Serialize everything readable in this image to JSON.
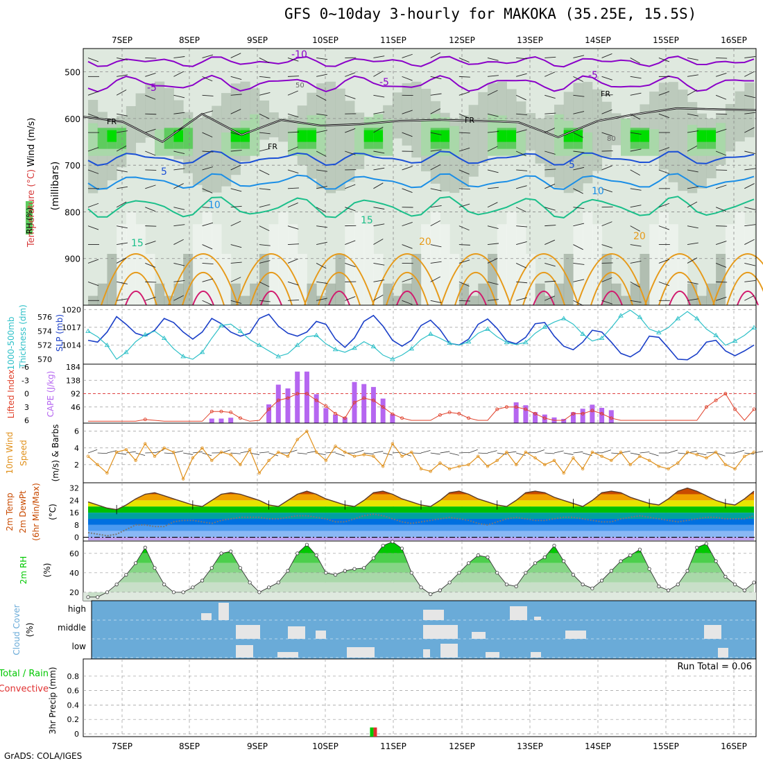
{
  "title": "GFS 0~10day 3-hourly for MAKOKA (35.25E, 15.5S)",
  "credit": "GrADS: COLA/IGES",
  "colors": {
    "rh_dark": "#00dd00",
    "rh_mid": "#5ecb5e",
    "rh_light": "#a9d8a9",
    "grey1": "#8a9a8a",
    "grey2": "#b3c2b3",
    "grey3": "#dfe9df",
    "iso_neg10": "#8a00c8",
    "iso_5": "#1a4fd6",
    "iso_10": "#1a8ee6",
    "iso_15": "#1bbf8a",
    "iso_20": "#e69a1a",
    "iso_25": "#d11a6e",
    "slp": "#1a3fc8",
    "thickness": "#2ec0c8",
    "cape": "#b566f0",
    "lifted": "#e0402a",
    "wind": "#e0901a",
    "cloud": "#6aabd8",
    "cloud_gap": "#e6e6e6",
    "rh2m": "#00c800"
  },
  "chart_data": [
    {
      "panel": "upper-air",
      "type": "heatmap",
      "x_dates": [
        "7SEP",
        "8SEP",
        "9SEP",
        "10SEP",
        "11SEP",
        "12SEP",
        "13SEP",
        "14SEP",
        "15SEP",
        "16SEP"
      ],
      "ylabel": "(millibars)",
      "y_ticks": [
        500,
        600,
        700,
        800,
        900
      ],
      "ylim": [
        1000,
        450
      ],
      "side_labels": [
        "Wind (m/s)",
        "Temperature (°C)",
        "RH (%)"
      ],
      "contour_labels": {
        "minus10": "-10",
        "minus5": "-5",
        "five": "5",
        "ten": "10",
        "fifteen": "15",
        "twenty": "20",
        "fr": "FR",
        "rh50": "50",
        "rh80": "80"
      },
      "freezing_level_mb": [
        596,
        607,
        650,
        590,
        635,
        603,
        615,
        612,
        605,
        603,
        605,
        608,
        640,
        605,
        590,
        578,
        580,
        582
      ]
    },
    {
      "panel": "slp-thickness",
      "type": "line",
      "left_labels": [
        "1000-500mb",
        "Thickness (dm)"
      ],
      "right_label": "SLP (mb)",
      "left_ticks": [
        570,
        572,
        574,
        576
      ],
      "right_ticks": [
        1014,
        1017,
        1020
      ],
      "ylim_slp": [
        1011,
        1020.5
      ],
      "ylim_thickness": [
        569.5,
        577.5
      ],
      "series": [
        {
          "name": "SLP",
          "values": [
            1014.8,
            1014.5,
            1016.2,
            1018.8,
            1017.5,
            1016.0,
            1015.5,
            1016.5,
            1018.5,
            1017.8,
            1016.2,
            1015.0,
            1016.2,
            1018.5,
            1017.6,
            1016.2,
            1015.5,
            1016.0,
            1018.5,
            1019.2,
            1017.2,
            1016.0,
            1015.5,
            1016.2,
            1018.0,
            1017.5,
            1015.0,
            1013.6,
            1015.2,
            1018.0,
            1019.0,
            1017.2,
            1014.8,
            1013.8,
            1014.8,
            1017.3,
            1018.2,
            1016.6,
            1014.3,
            1014.0,
            1015.0,
            1017.5,
            1018.4,
            1016.8,
            1014.7,
            1014.2,
            1015.3,
            1017.6,
            1017.8,
            1015.5,
            1013.8,
            1013.2,
            1014.5,
            1016.5,
            1016.2,
            1014.5,
            1012.6,
            1012.0,
            1013.0,
            1015.5,
            1015.3,
            1013.5,
            1011.6,
            1011.5,
            1012.5,
            1014.5,
            1014.8,
            1013.0,
            1012.2,
            1013.0,
            1014.0
          ]
        },
        {
          "name": "Thickness",
          "values": [
            574,
            573.2,
            572.0,
            570.0,
            571.0,
            572.5,
            573.5,
            574.0,
            573.0,
            571.5,
            570.4,
            570.0,
            571.0,
            573.0,
            574.8,
            575.0,
            574.0,
            572.8,
            572.0,
            571.2,
            570.4,
            570.8,
            572.0,
            573.2,
            573.4,
            572.2,
            571.4,
            571.0,
            571.6,
            572.5,
            571.8,
            570.6,
            570.0,
            570.6,
            571.5,
            572.8,
            573.6,
            573.0,
            572.3,
            572.0,
            572.5,
            573.7,
            574.3,
            573.2,
            572.4,
            572.1,
            572.4,
            573.7,
            574.6,
            575.3,
            575.8,
            575.0,
            573.6,
            572.6,
            573.0,
            574.5,
            576.2,
            577.0,
            576.0,
            574.3,
            573.8,
            574.5,
            575.8,
            576.8,
            575.8,
            574.3,
            573.4,
            572.0,
            572.6,
            573.4,
            574.5
          ]
        }
      ]
    },
    {
      "panel": "cape-lifted",
      "type": "bar",
      "left_labels": [
        "Lifted Index",
        "CAPE (J/kg)"
      ],
      "lifted_ticks": [
        "6",
        "3",
        "0",
        "-3",
        "-6"
      ],
      "cape_ticks": [
        "46",
        "92",
        "138",
        "184"
      ],
      "ylim_cape": [
        0,
        184
      ],
      "ylim_lifted": [
        6,
        -6
      ],
      "series": [
        {
          "name": "CAPE",
          "values": [
            0,
            0,
            0,
            0,
            0,
            0,
            0,
            0,
            0,
            0,
            0,
            0,
            0,
            6,
            6,
            9,
            0,
            0,
            0,
            55,
            123,
            110,
            168,
            168,
            90,
            42,
            20,
            10,
            132,
            125,
            115,
            75,
            22,
            0,
            0,
            0,
            0,
            0,
            0,
            0,
            0,
            0,
            0,
            0,
            0,
            62,
            52,
            28,
            20,
            10,
            5,
            28,
            40,
            54,
            43,
            35,
            0,
            0,
            0,
            0,
            0,
            0,
            0,
            0,
            0,
            0,
            0,
            0,
            0,
            0,
            0
          ]
        },
        {
          "name": "Lifted Index",
          "values": [
            6.2,
            6.2,
            6.2,
            6.2,
            6.2,
            6.2,
            5.8,
            6.0,
            6.2,
            6.2,
            6.2,
            6.2,
            6.2,
            4.0,
            4.0,
            4.2,
            5.5,
            6.2,
            6.0,
            3.5,
            1.5,
            1.0,
            0.0,
            0.0,
            1.5,
            2.8,
            4.5,
            5.5,
            2.0,
            1.0,
            1.5,
            3.0,
            4.6,
            5.5,
            6.0,
            6.0,
            6.0,
            4.8,
            4.2,
            4.5,
            5.5,
            6.0,
            6.0,
            3.5,
            3.0,
            3.0,
            3.5,
            4.5,
            5.5,
            6.0,
            6.0,
            4.5,
            4.5,
            3.8,
            4.5,
            5.5,
            6.0,
            6.0,
            6.0,
            6.0,
            6.0,
            6.0,
            6.0,
            6.0,
            6.0,
            3.0,
            1.5,
            0.0,
            3.5,
            6.0,
            3.5
          ]
        }
      ]
    },
    {
      "panel": "wind10m",
      "type": "line",
      "left_labels": [
        "10m Wind",
        "Speed",
        "(m/s) & Barbs"
      ],
      "y_ticks": [
        2,
        4,
        6
      ],
      "ylim": [
        0,
        6.8
      ],
      "series": [
        {
          "name": "10m Wind Speed",
          "values": [
            3.0,
            2.0,
            1.0,
            3.5,
            3.8,
            2.5,
            4.5,
            3.0,
            4.0,
            3.5,
            0.3,
            2.8,
            4.0,
            2.5,
            3.5,
            3.2,
            2.0,
            3.8,
            1.0,
            2.5,
            3.5,
            3.0,
            5.0,
            6.0,
            3.5,
            2.5,
            4.2,
            3.5,
            3.0,
            3.2,
            3.0,
            1.8,
            4.5,
            3.0,
            3.5,
            1.5,
            1.2,
            2.2,
            1.5,
            1.8,
            2.0,
            3.0,
            1.8,
            2.5,
            3.5,
            2.0,
            3.5,
            2.8,
            2.0,
            2.5,
            1.0,
            2.8,
            1.5,
            3.5,
            3.0,
            2.5,
            3.5,
            2.0,
            3.0,
            2.5,
            1.8,
            1.5,
            2.2,
            3.5,
            3.2,
            2.8,
            3.5,
            2.0,
            1.5,
            3.0,
            3.5
          ]
        }
      ]
    },
    {
      "panel": "temp2m",
      "type": "area",
      "left_labels": [
        "2m Temp",
        "2m DewPt",
        "(6hr Min/Max)"
      ],
      "unit_label": "(°C)",
      "y_ticks": [
        0,
        8,
        16,
        24,
        32
      ],
      "ylim": [
        -2,
        35
      ],
      "series": [
        {
          "name": "2m Temp",
          "values": [
            23,
            21,
            19,
            18,
            21,
            25,
            28,
            29,
            27,
            25,
            23,
            21,
            20,
            24,
            28,
            29,
            28,
            26,
            24,
            21,
            20,
            24,
            28,
            30,
            28,
            25,
            23,
            21,
            20,
            24,
            29,
            30,
            28,
            25,
            23,
            21,
            20,
            24,
            29,
            30,
            28,
            25,
            23,
            21,
            20,
            24,
            29,
            30,
            29,
            26,
            24,
            22,
            20,
            24,
            29,
            30,
            29,
            26,
            24,
            22,
            21,
            25,
            30,
            32,
            30,
            27,
            24,
            22,
            21,
            25,
            30
          ]
        },
        {
          "name": "2m DewPt",
          "values": [
            3,
            2,
            1,
            2,
            5,
            8,
            8,
            7,
            7,
            10,
            11,
            11,
            10,
            9,
            11,
            12,
            13,
            13,
            13,
            12,
            12,
            13,
            14,
            14,
            13,
            12,
            10,
            10,
            12,
            14,
            15,
            14,
            12,
            10,
            9,
            10,
            11,
            12,
            13,
            12,
            11,
            9,
            8,
            10,
            12,
            13,
            12,
            11,
            11,
            12,
            13,
            13,
            12,
            11,
            10,
            10,
            12,
            13,
            14,
            13,
            12,
            11,
            10,
            11,
            12,
            13,
            13,
            12,
            12,
            12,
            14
          ]
        }
      ]
    },
    {
      "panel": "rh2m",
      "type": "area",
      "left_labels": [
        "2m RH",
        "(%)"
      ],
      "y_ticks": [
        20,
        40,
        60
      ],
      "ylim": [
        12,
        72
      ],
      "series": [
        {
          "name": "2m RH",
          "values": [
            15,
            15,
            20,
            28,
            38,
            50,
            66,
            45,
            28,
            20,
            20,
            25,
            32,
            45,
            60,
            62,
            45,
            30,
            20,
            25,
            30,
            42,
            60,
            69,
            58,
            40,
            38,
            42,
            44,
            45,
            55,
            68,
            72,
            65,
            40,
            25,
            18,
            22,
            30,
            40,
            50,
            58,
            56,
            40,
            28,
            26,
            40,
            50,
            56,
            68,
            52,
            38,
            28,
            24,
            32,
            42,
            52,
            58,
            64,
            44,
            26,
            22,
            28,
            42,
            66,
            70,
            52,
            36,
            28,
            22,
            30
          ]
        }
      ]
    },
    {
      "panel": "cloud-cover",
      "type": "bar",
      "left_labels": [
        "Cloud Cover",
        "(%)"
      ],
      "level_labels": [
        "high",
        "middle",
        "low"
      ]
    },
    {
      "panel": "precip",
      "type": "bar",
      "left_labels": [
        "Total / Rain",
        "Convective"
      ],
      "ylabel": "3hr Precip (mm)",
      "y_ticks": [
        "0",
        "0.2",
        "0.4",
        "0.6",
        "0.8"
      ],
      "ylim": [
        0,
        1
      ],
      "run_total": "Run Total = 0.06",
      "series": [
        {
          "name": "Total",
          "values": [
            0,
            0,
            0,
            0,
            0,
            0,
            0,
            0,
            0,
            0,
            0,
            0,
            0,
            0,
            0,
            0,
            0,
            0,
            0,
            0,
            0,
            0,
            0,
            0,
            0,
            0,
            0,
            0,
            0,
            0,
            0.06,
            0,
            0,
            0,
            0,
            0,
            0,
            0,
            0,
            0,
            0,
            0,
            0,
            0,
            0,
            0,
            0,
            0,
            0,
            0,
            0,
            0,
            0,
            0,
            0,
            0,
            0,
            0,
            0,
            0,
            0,
            0,
            0,
            0,
            0,
            0,
            0,
            0,
            0,
            0,
            0
          ]
        },
        {
          "name": "Convective",
          "values": [
            0,
            0,
            0,
            0,
            0,
            0,
            0,
            0,
            0,
            0,
            0,
            0,
            0,
            0,
            0,
            0,
            0,
            0,
            0,
            0,
            0,
            0,
            0,
            0,
            0,
            0,
            0,
            0,
            0,
            0,
            0.06,
            0,
            0,
            0,
            0,
            0,
            0,
            0,
            0,
            0,
            0,
            0,
            0,
            0,
            0,
            0,
            0,
            0,
            0,
            0,
            0,
            0,
            0,
            0,
            0,
            0,
            0,
            0,
            0,
            0,
            0,
            0,
            0,
            0,
            0,
            0,
            0,
            0,
            0,
            0,
            0
          ]
        }
      ]
    }
  ]
}
